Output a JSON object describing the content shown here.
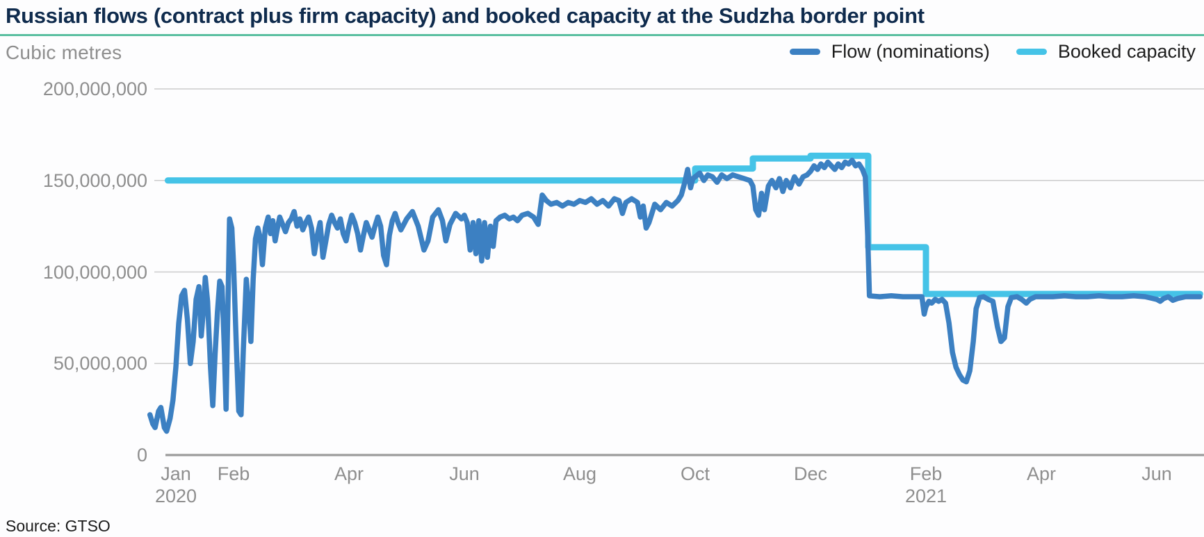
{
  "title": "Russian flows (contract plus firm capacity) and booked capacity at the Sudzha border point",
  "unit_label": "Cubic metres",
  "source": "Source: GTSO",
  "colors": {
    "flow": "#3C80C2",
    "booked": "#45C3E7",
    "title_text": "#0F2B4D",
    "accent_rule": "#5ABFA0",
    "axis_text": "#8E8E8E",
    "gridline": "#CBCBCB",
    "axis_line": "#9B9B9B",
    "legend_text": "#1C1C1C"
  },
  "legend": [
    {
      "label": "Flow (nominations)",
      "series": "flow"
    },
    {
      "label": "Booked capacity",
      "series": "booked"
    }
  ],
  "chart_data": {
    "type": "line",
    "title": "Russian flows (contract plus firm capacity) and booked capacity at the Sudzha border point",
    "ylabel": "Cubic metres",
    "x_unit": "months since 2020-01-01 (fractional, negative = Dec 2019)",
    "y_unit": "cubic metres, in millions",
    "xlim_months": [
      -0.5,
      17.85
    ],
    "ylim_millions": [
      0,
      200
    ],
    "grid": "horizontal",
    "legend_position": "top-right",
    "y_ticks": [
      {
        "value_millions": 200,
        "label": "200,000,000"
      },
      {
        "value_millions": 150,
        "label": "150,000,000"
      },
      {
        "value_millions": 100,
        "label": "100,000,000"
      },
      {
        "value_millions": 50,
        "label": "50,000,000"
      },
      {
        "value_millions": 0,
        "label": "0"
      }
    ],
    "x_ticks": [
      {
        "month_index": 0,
        "label": "Jan",
        "year": "2020"
      },
      {
        "month_index": 1,
        "label": "Feb"
      },
      {
        "month_index": 3,
        "label": "Apr"
      },
      {
        "month_index": 5,
        "label": "Jun"
      },
      {
        "month_index": 7,
        "label": "Aug"
      },
      {
        "month_index": 9,
        "label": "Oct"
      },
      {
        "month_index": 11,
        "label": "Dec"
      },
      {
        "month_index": 13,
        "label": "Feb",
        "year": "2021"
      },
      {
        "month_index": 15,
        "label": "Apr"
      },
      {
        "month_index": 17,
        "label": "Jun"
      }
    ],
    "series": [
      {
        "name": "Flow (nominations)",
        "color_key": "flow",
        "stroke_width": 7.5,
        "points": [
          [
            -0.45,
            22
          ],
          [
            -0.4,
            17
          ],
          [
            -0.36,
            15
          ],
          [
            -0.3,
            24
          ],
          [
            -0.26,
            26
          ],
          [
            -0.2,
            15
          ],
          [
            -0.16,
            13
          ],
          [
            -0.1,
            20
          ],
          [
            -0.05,
            30
          ],
          [
            0.0,
            48
          ],
          [
            0.05,
            72
          ],
          [
            0.1,
            87
          ],
          [
            0.15,
            90
          ],
          [
            0.2,
            74
          ],
          [
            0.25,
            50
          ],
          [
            0.3,
            62
          ],
          [
            0.35,
            85
          ],
          [
            0.4,
            92
          ],
          [
            0.44,
            65
          ],
          [
            0.48,
            80
          ],
          [
            0.51,
            97
          ],
          [
            0.55,
            84
          ],
          [
            0.6,
            48
          ],
          [
            0.64,
            27
          ],
          [
            0.68,
            55
          ],
          [
            0.72,
            78
          ],
          [
            0.76,
            95
          ],
          [
            0.8,
            92
          ],
          [
            0.84,
            58
          ],
          [
            0.87,
            25
          ],
          [
            0.9,
            78
          ],
          [
            0.93,
            129
          ],
          [
            0.97,
            124
          ],
          [
            1.0,
            104
          ],
          [
            1.05,
            58
          ],
          [
            1.09,
            24
          ],
          [
            1.13,
            22
          ],
          [
            1.17,
            58
          ],
          [
            1.22,
            96
          ],
          [
            1.26,
            82
          ],
          [
            1.3,
            62
          ],
          [
            1.34,
            96
          ],
          [
            1.38,
            118
          ],
          [
            1.42,
            124
          ],
          [
            1.46,
            119
          ],
          [
            1.5,
            104
          ],
          [
            1.55,
            124
          ],
          [
            1.6,
            130
          ],
          [
            1.64,
            121
          ],
          [
            1.68,
            128
          ],
          [
            1.72,
            117
          ],
          [
            1.76,
            124
          ],
          [
            1.8,
            130
          ],
          [
            1.85,
            126
          ],
          [
            1.9,
            122
          ],
          [
            1.95,
            127
          ],
          [
            2.0,
            129
          ],
          [
            2.05,
            133
          ],
          [
            2.1,
            125
          ],
          [
            2.15,
            129
          ],
          [
            2.2,
            123
          ],
          [
            2.25,
            127
          ],
          [
            2.3,
            130
          ],
          [
            2.35,
            124
          ],
          [
            2.4,
            110
          ],
          [
            2.45,
            120
          ],
          [
            2.5,
            127
          ],
          [
            2.55,
            108
          ],
          [
            2.6,
            117
          ],
          [
            2.65,
            126
          ],
          [
            2.7,
            131
          ],
          [
            2.75,
            127
          ],
          [
            2.8,
            124
          ],
          [
            2.85,
            129
          ],
          [
            2.9,
            121
          ],
          [
            2.95,
            117
          ],
          [
            3.0,
            125
          ],
          [
            3.05,
            131
          ],
          [
            3.1,
            127
          ],
          [
            3.15,
            121
          ],
          [
            3.2,
            112
          ],
          [
            3.25,
            120
          ],
          [
            3.3,
            127
          ],
          [
            3.35,
            123
          ],
          [
            3.4,
            119
          ],
          [
            3.45,
            125
          ],
          [
            3.5,
            130
          ],
          [
            3.55,
            125
          ],
          [
            3.6,
            109
          ],
          [
            3.65,
            104
          ],
          [
            3.7,
            120
          ],
          [
            3.75,
            128
          ],
          [
            3.8,
            132
          ],
          [
            3.85,
            127
          ],
          [
            3.9,
            123
          ],
          [
            3.95,
            126
          ],
          [
            4.0,
            129
          ],
          [
            4.1,
            133
          ],
          [
            4.2,
            125
          ],
          [
            4.3,
            112
          ],
          [
            4.37,
            117
          ],
          [
            4.45,
            130
          ],
          [
            4.55,
            134
          ],
          [
            4.62,
            128
          ],
          [
            4.68,
            117
          ],
          [
            4.75,
            126
          ],
          [
            4.85,
            132
          ],
          [
            4.95,
            129
          ],
          [
            5.0,
            131
          ],
          [
            5.05,
            127
          ],
          [
            5.1,
            112
          ],
          [
            5.15,
            127
          ],
          [
            5.2,
            110
          ],
          [
            5.25,
            128
          ],
          [
            5.3,
            106
          ],
          [
            5.35,
            127
          ],
          [
            5.4,
            108
          ],
          [
            5.45,
            125
          ],
          [
            5.5,
            114
          ],
          [
            5.55,
            128
          ],
          [
            5.62,
            130
          ],
          [
            5.7,
            131
          ],
          [
            5.78,
            129
          ],
          [
            5.85,
            130
          ],
          [
            5.92,
            128
          ],
          [
            6.0,
            131
          ],
          [
            6.1,
            132
          ],
          [
            6.2,
            130
          ],
          [
            6.28,
            126
          ],
          [
            6.35,
            142
          ],
          [
            6.42,
            139
          ],
          [
            6.5,
            137
          ],
          [
            6.6,
            138
          ],
          [
            6.7,
            136
          ],
          [
            6.8,
            138
          ],
          [
            6.9,
            137
          ],
          [
            7.0,
            139
          ],
          [
            7.1,
            138
          ],
          [
            7.2,
            140
          ],
          [
            7.3,
            137
          ],
          [
            7.4,
            139
          ],
          [
            7.5,
            136
          ],
          [
            7.6,
            140
          ],
          [
            7.68,
            139
          ],
          [
            7.74,
            132
          ],
          [
            7.8,
            138
          ],
          [
            7.9,
            140
          ],
          [
            8.0,
            138
          ],
          [
            8.05,
            130
          ],
          [
            8.1,
            136
          ],
          [
            8.15,
            124
          ],
          [
            8.2,
            127
          ],
          [
            8.3,
            137
          ],
          [
            8.4,
            134
          ],
          [
            8.5,
            138
          ],
          [
            8.6,
            136
          ],
          [
            8.7,
            139
          ],
          [
            8.76,
            142
          ],
          [
            8.82,
            149
          ],
          [
            8.87,
            156
          ],
          [
            8.92,
            146
          ],
          [
            8.96,
            151
          ],
          [
            9.0,
            152
          ],
          [
            9.08,
            154
          ],
          [
            9.15,
            150
          ],
          [
            9.22,
            153
          ],
          [
            9.3,
            152
          ],
          [
            9.38,
            149
          ],
          [
            9.46,
            153
          ],
          [
            9.55,
            151
          ],
          [
            9.65,
            153
          ],
          [
            9.75,
            152
          ],
          [
            9.85,
            151
          ],
          [
            9.95,
            150
          ],
          [
            10.0,
            147
          ],
          [
            10.05,
            134
          ],
          [
            10.1,
            131
          ],
          [
            10.15,
            143
          ],
          [
            10.2,
            134
          ],
          [
            10.27,
            147
          ],
          [
            10.33,
            150
          ],
          [
            10.4,
            146
          ],
          [
            10.46,
            151
          ],
          [
            10.52,
            144
          ],
          [
            10.58,
            150
          ],
          [
            10.65,
            146
          ],
          [
            10.72,
            152
          ],
          [
            10.8,
            148
          ],
          [
            10.87,
            152
          ],
          [
            10.94,
            153
          ],
          [
            11.0,
            155
          ],
          [
            11.06,
            158
          ],
          [
            11.12,
            156
          ],
          [
            11.18,
            159
          ],
          [
            11.24,
            157
          ],
          [
            11.3,
            160
          ],
          [
            11.36,
            158
          ],
          [
            11.42,
            156
          ],
          [
            11.48,
            159
          ],
          [
            11.54,
            157
          ],
          [
            11.6,
            160
          ],
          [
            11.66,
            159
          ],
          [
            11.72,
            161
          ],
          [
            11.78,
            158
          ],
          [
            11.84,
            159
          ],
          [
            11.9,
            156
          ],
          [
            11.95,
            152
          ],
          [
            11.99,
            120
          ],
          [
            12.02,
            87
          ],
          [
            12.2,
            86.5
          ],
          [
            12.4,
            87
          ],
          [
            12.6,
            86.5
          ],
          [
            12.8,
            86.5
          ],
          [
            12.93,
            86.5
          ],
          [
            12.97,
            77
          ],
          [
            13.0,
            81
          ],
          [
            13.05,
            84
          ],
          [
            13.1,
            83
          ],
          [
            13.16,
            85
          ],
          [
            13.22,
            84
          ],
          [
            13.28,
            85
          ],
          [
            13.34,
            83
          ],
          [
            13.4,
            72
          ],
          [
            13.46,
            56
          ],
          [
            13.52,
            48
          ],
          [
            13.58,
            44
          ],
          [
            13.64,
            41
          ],
          [
            13.7,
            40
          ],
          [
            13.76,
            46
          ],
          [
            13.82,
            62
          ],
          [
            13.87,
            80
          ],
          [
            13.93,
            86
          ],
          [
            14.0,
            86.5
          ],
          [
            14.08,
            85
          ],
          [
            14.16,
            84
          ],
          [
            14.24,
            70
          ],
          [
            14.3,
            62
          ],
          [
            14.36,
            64
          ],
          [
            14.42,
            81
          ],
          [
            14.48,
            86
          ],
          [
            14.58,
            86.5
          ],
          [
            14.66,
            85
          ],
          [
            14.74,
            83
          ],
          [
            14.8,
            85
          ],
          [
            14.9,
            86.5
          ],
          [
            15.0,
            86.5
          ],
          [
            15.2,
            86.5
          ],
          [
            15.4,
            87
          ],
          [
            15.6,
            86.5
          ],
          [
            15.8,
            86.5
          ],
          [
            16.0,
            87
          ],
          [
            16.2,
            86.5
          ],
          [
            16.4,
            86.5
          ],
          [
            16.6,
            87
          ],
          [
            16.8,
            86.5
          ],
          [
            17.0,
            85
          ],
          [
            17.06,
            84
          ],
          [
            17.12,
            85.5
          ],
          [
            17.2,
            86.5
          ],
          [
            17.28,
            84.5
          ],
          [
            17.36,
            85.5
          ],
          [
            17.5,
            86.5
          ],
          [
            17.62,
            86.5
          ],
          [
            17.75,
            86.5
          ]
        ]
      },
      {
        "name": "Booked capacity",
        "color_key": "booked",
        "stroke_width": 9,
        "points": [
          [
            -0.14,
            150
          ],
          [
            9,
            150
          ],
          [
            9,
            156.5
          ],
          [
            10,
            156.5
          ],
          [
            10,
            162
          ],
          [
            11,
            162
          ],
          [
            11,
            163.5
          ],
          [
            12,
            163.5
          ],
          [
            12,
            113.5
          ],
          [
            13,
            113.5
          ],
          [
            13,
            88
          ],
          [
            17.75,
            88
          ]
        ]
      }
    ]
  }
}
